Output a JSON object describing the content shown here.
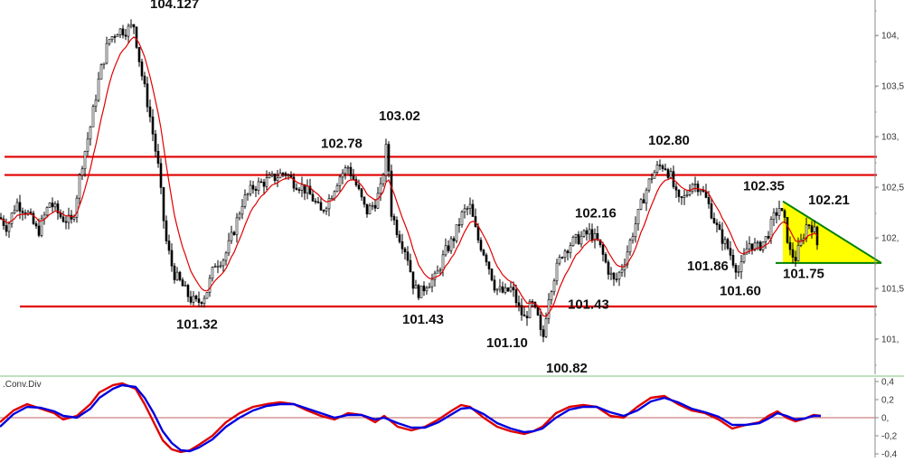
{
  "chart_data": [
    {
      "type": "candlestick",
      "panel": "price",
      "title": "",
      "ylim": [
        100.65,
        104.35
      ],
      "y_ticks": [
        {
          "value": 104.0,
          "label": "104,"
        },
        {
          "value": 103.5,
          "label": "103,5"
        },
        {
          "value": 103.0,
          "label": "103,"
        },
        {
          "value": 102.5,
          "label": "102,5"
        },
        {
          "value": 102.0,
          "label": "102,"
        },
        {
          "value": 101.5,
          "label": "101,5"
        },
        {
          "value": 101.0,
          "label": "101,"
        }
      ],
      "anchors": [
        [
          0,
          102.2
        ],
        [
          8,
          102.1
        ],
        [
          18,
          102.35
        ],
        [
          30,
          102.25
        ],
        [
          42,
          102.05
        ],
        [
          55,
          102.35
        ],
        [
          68,
          102.2
        ],
        [
          80,
          102.15
        ],
        [
          90,
          102.7
        ],
        [
          100,
          103.1
        ],
        [
          110,
          103.6
        ],
        [
          120,
          103.95
        ],
        [
          130,
          104.05
        ],
        [
          140,
          104.05
        ],
        [
          148,
          104.1
        ],
        [
          156,
          103.65
        ],
        [
          165,
          103.25
        ],
        [
          175,
          102.7
        ],
        [
          183,
          102.0
        ],
        [
          192,
          101.65
        ],
        [
          200,
          101.55
        ],
        [
          210,
          101.4
        ],
        [
          218,
          101.35
        ],
        [
          228,
          101.45
        ],
        [
          238,
          101.75
        ],
        [
          248,
          101.8
        ],
        [
          258,
          102.05
        ],
        [
          268,
          102.35
        ],
        [
          280,
          102.5
        ],
        [
          292,
          102.55
        ],
        [
          305,
          102.6
        ],
        [
          315,
          102.65
        ],
        [
          325,
          102.55
        ],
        [
          335,
          102.5
        ],
        [
          345,
          102.4
        ],
        [
          355,
          102.25
        ],
        [
          365,
          102.4
        ],
        [
          375,
          102.6
        ],
        [
          385,
          102.7
        ],
        [
          395,
          102.5
        ],
        [
          405,
          102.25
        ],
        [
          415,
          102.35
        ],
        [
          422,
          102.5
        ],
        [
          428,
          102.95
        ],
        [
          433,
          102.25
        ],
        [
          440,
          102.05
        ],
        [
          450,
          101.85
        ],
        [
          458,
          101.5
        ],
        [
          465,
          101.45
        ],
        [
          472,
          101.55
        ],
        [
          482,
          101.6
        ],
        [
          492,
          101.85
        ],
        [
          502,
          102.0
        ],
        [
          512,
          102.25
        ],
        [
          520,
          102.3
        ],
        [
          528,
          102.0
        ],
        [
          538,
          101.8
        ],
        [
          548,
          101.5
        ],
        [
          558,
          101.45
        ],
        [
          566,
          101.5
        ],
        [
          574,
          101.3
        ],
        [
          580,
          101.2
        ],
        [
          588,
          101.35
        ],
        [
          595,
          101.2
        ],
        [
          600,
          100.95
        ],
        [
          606,
          101.4
        ],
        [
          614,
          101.65
        ],
        [
          622,
          101.85
        ],
        [
          632,
          101.95
        ],
        [
          642,
          102.0
        ],
        [
          652,
          102.05
        ],
        [
          662,
          101.95
        ],
        [
          672,
          101.7
        ],
        [
          680,
          101.55
        ],
        [
          690,
          101.75
        ],
        [
          700,
          102.05
        ],
        [
          710,
          102.35
        ],
        [
          720,
          102.6
        ],
        [
          728,
          102.7
        ],
        [
          735,
          102.72
        ],
        [
          742,
          102.6
        ],
        [
          750,
          102.35
        ],
        [
          758,
          102.4
        ],
        [
          765,
          102.55
        ],
        [
          775,
          102.5
        ],
        [
          785,
          102.3
        ],
        [
          795,
          102.05
        ],
        [
          805,
          101.9
        ],
        [
          812,
          101.75
        ],
        [
          818,
          101.65
        ],
        [
          828,
          101.95
        ],
        [
          838,
          101.9
        ],
        [
          848,
          102.0
        ],
        [
          856,
          102.2
        ],
        [
          862,
          102.3
        ],
        [
          868,
          102.15
        ],
        [
          874,
          101.85
        ],
        [
          880,
          101.8
        ],
        [
          886,
          101.95
        ],
        [
          893,
          102.15
        ],
        [
          900,
          102.1
        ],
        [
          906,
          101.85
        ]
      ],
      "moving_average_color": "#e00000",
      "candle_color": "#000000",
      "horizontal_levels": [
        {
          "value": 102.8,
          "x_from": 5,
          "x_to": 970
        },
        {
          "value": 102.62,
          "x_from": 5,
          "x_to": 970
        },
        {
          "value": 101.32,
          "x_from": 22,
          "x_to": 970
        }
      ],
      "triangle": {
        "top_left": [
          866,
          102.36
        ],
        "bottom_left": [
          866,
          101.75
        ],
        "right": [
          975,
          101.75
        ],
        "fill": "#ffff00",
        "line_color": "#008000"
      },
      "price_annotations": [
        {
          "text": "104.127",
          "x": 166,
          "y": 104.27
        },
        {
          "text": "102.78",
          "x": 355,
          "y": 102.89
        },
        {
          "text": "103.02",
          "x": 419,
          "y": 103.16
        },
        {
          "text": "101.32",
          "x": 195,
          "y": 101.1
        },
        {
          "text": "101.43",
          "x": 445,
          "y": 101.15
        },
        {
          "text": "101.43",
          "x": 628,
          "y": 101.3
        },
        {
          "text": "101.10",
          "x": 538,
          "y": 100.92
        },
        {
          "text": "100.82",
          "x": 604,
          "y": 100.67
        },
        {
          "text": "102.16",
          "x": 636,
          "y": 102.2
        },
        {
          "text": "102.80",
          "x": 717,
          "y": 102.92
        },
        {
          "text": "102.35",
          "x": 822,
          "y": 102.47
        },
        {
          "text": "102.21",
          "x": 894,
          "y": 102.33
        },
        {
          "text": "101.86",
          "x": 760,
          "y": 101.68
        },
        {
          "text": "101.60",
          "x": 796,
          "y": 101.43
        },
        {
          "text": "101.75",
          "x": 866,
          "y": 101.6
        }
      ]
    },
    {
      "type": "line",
      "panel": "indicator",
      "title": ".Conv.Div",
      "ylim": [
        -0.42,
        0.42
      ],
      "y_ticks": [
        {
          "value": 0.4,
          "label": "0,4"
        },
        {
          "value": 0.2,
          "label": "0,2"
        },
        {
          "value": 0.0,
          "label": "0,"
        },
        {
          "value": -0.2,
          "label": "-0,2"
        },
        {
          "value": -0.4,
          "label": "-0,4"
        }
      ],
      "zero_line_color": "#c06060",
      "series": [
        {
          "color": "#e00000",
          "x": [
            0,
            15,
            30,
            45,
            60,
            70,
            85,
            100,
            110,
            125,
            135,
            150,
            160,
            170,
            180,
            190,
            200,
            210,
            220,
            235,
            250,
            265,
            280,
            295,
            310,
            325,
            340,
            355,
            370,
            385,
            400,
            415,
            425,
            440,
            455,
            470,
            485,
            500,
            510,
            520,
            535,
            550,
            565,
            580,
            590,
            600,
            615,
            630,
            645,
            660,
            675,
            690,
            705,
            720,
            735,
            750,
            765,
            780,
            795,
            810,
            825,
            840,
            850,
            860,
            870,
            880,
            890,
            900,
            908
          ],
          "values": [
            -0.05,
            0.08,
            0.15,
            0.1,
            0.05,
            -0.02,
            0.02,
            0.15,
            0.28,
            0.36,
            0.38,
            0.32,
            0.15,
            -0.05,
            -0.25,
            -0.35,
            -0.38,
            -0.36,
            -0.3,
            -0.2,
            -0.05,
            0.05,
            0.12,
            0.15,
            0.17,
            0.15,
            0.08,
            0.02,
            -0.02,
            0.05,
            0.03,
            -0.05,
            0.02,
            -0.1,
            -0.14,
            -0.1,
            -0.02,
            0.08,
            0.14,
            0.12,
            0.0,
            -0.1,
            -0.15,
            -0.18,
            -0.15,
            -0.1,
            0.05,
            0.12,
            0.14,
            0.12,
            0.02,
            0.0,
            0.12,
            0.22,
            0.24,
            0.15,
            0.08,
            0.05,
            -0.02,
            -0.12,
            -0.08,
            -0.05,
            0.02,
            0.07,
            0.0,
            -0.04,
            -0.01,
            0.03,
            0.02
          ]
        },
        {
          "color": "#0000e0",
          "x": [
            0,
            15,
            30,
            45,
            60,
            70,
            85,
            100,
            110,
            125,
            135,
            150,
            160,
            170,
            180,
            190,
            200,
            210,
            220,
            235,
            250,
            265,
            280,
            295,
            310,
            325,
            340,
            355,
            370,
            385,
            400,
            415,
            425,
            440,
            455,
            470,
            485,
            500,
            510,
            520,
            535,
            550,
            565,
            580,
            590,
            600,
            615,
            630,
            645,
            660,
            675,
            690,
            705,
            720,
            735,
            750,
            765,
            780,
            795,
            810,
            825,
            840,
            850,
            860,
            870,
            880,
            890,
            900,
            908
          ],
          "values": [
            -0.1,
            0.04,
            0.12,
            0.11,
            0.07,
            0.02,
            0.0,
            0.1,
            0.22,
            0.32,
            0.36,
            0.34,
            0.22,
            0.05,
            -0.15,
            -0.28,
            -0.36,
            -0.37,
            -0.33,
            -0.24,
            -0.1,
            0.0,
            0.08,
            0.13,
            0.15,
            0.15,
            0.1,
            0.05,
            0.0,
            0.03,
            0.03,
            -0.02,
            0.0,
            -0.06,
            -0.11,
            -0.11,
            -0.05,
            0.04,
            0.1,
            0.11,
            0.04,
            -0.06,
            -0.12,
            -0.16,
            -0.15,
            -0.12,
            0.0,
            0.09,
            0.12,
            0.12,
            0.06,
            0.02,
            0.08,
            0.18,
            0.22,
            0.17,
            0.1,
            0.06,
            0.01,
            -0.08,
            -0.08,
            -0.06,
            -0.01,
            0.05,
            0.02,
            -0.02,
            -0.01,
            0.02,
            0.02
          ]
        }
      ]
    }
  ]
}
